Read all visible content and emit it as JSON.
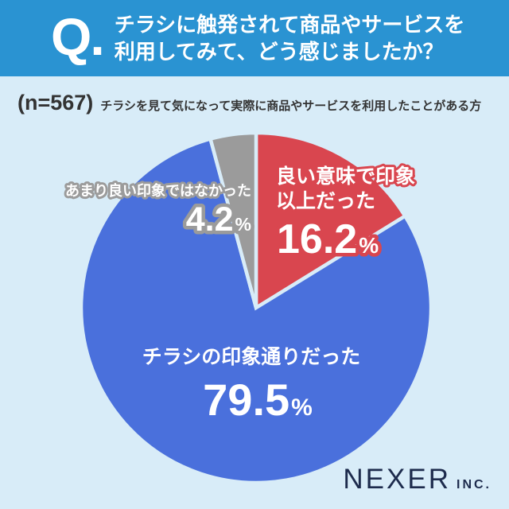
{
  "header": {
    "q_label": "Q.",
    "question_line1": "チラシに触発されて商品やサービスを",
    "question_line2": "利用してみて、どう感じましたか？"
  },
  "subtitle": {
    "sample_size": "(n=567)",
    "description": "チラシを見て気になって実際に商品やサービスを利用したことがある方"
  },
  "chart_data": {
    "type": "pie",
    "title": "チラシに触発されて商品やサービスを利用してみて、どう感じましたか？",
    "sample_size_n": 567,
    "start_angle_deg": 0,
    "clockwise": true,
    "legend_position": "on-chart",
    "slices": [
      {
        "label": "良い意味で印象以上だった",
        "label_lines": [
          "良い意味で印象",
          "以上だった"
        ],
        "value": 16.2,
        "display_value": "16.2",
        "unit": "%",
        "color": "#d9464f"
      },
      {
        "label": "チラシの印象通りだった",
        "value": 79.5,
        "display_value": "79.5",
        "unit": "%",
        "color": "#4a70dc"
      },
      {
        "label": "あまり良い印象ではなかった",
        "value": 4.2,
        "display_value": "4.2",
        "unit": "%",
        "color": "#9b9b9b"
      }
    ]
  },
  "footer": {
    "brand": "NEXER",
    "brand_suffix": "INC."
  },
  "colors": {
    "background": "#d8ecf8",
    "header_bg": "#2a93d2",
    "text_dark": "#333333",
    "logo_navy": "#1d2b4d",
    "label_white": "#ffffff"
  }
}
